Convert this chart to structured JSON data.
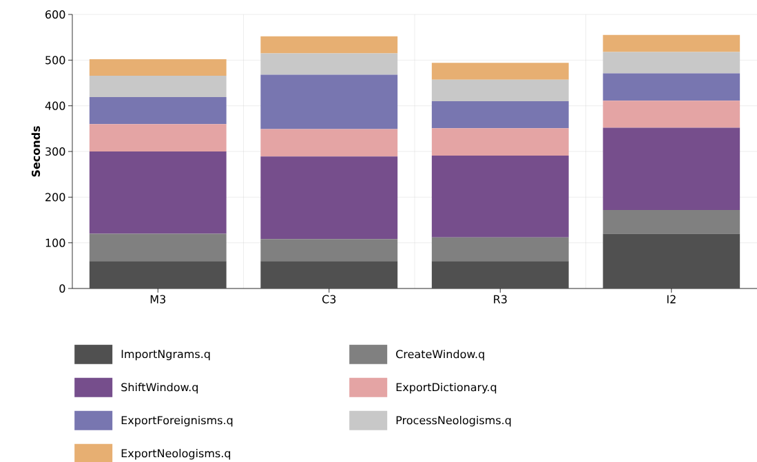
{
  "chart_data": {
    "type": "bar",
    "stacked": true,
    "ylabel": "Seconds",
    "categories": [
      "M3",
      "C3",
      "R3",
      "I2"
    ],
    "series": [
      {
        "name": "ImportNgrams.q",
        "color": "#505050",
        "values": [
          60,
          60,
          60,
          120
        ]
      },
      {
        "name": "CreateWindow.q",
        "color": "#808080",
        "values": [
          60,
          48,
          52,
          52
        ]
      },
      {
        "name": "ShiftWindow.q",
        "color": "#764e8c",
        "values": [
          180,
          181,
          179,
          180
        ]
      },
      {
        "name": "ExportDictionary.q",
        "color": "#e4a4a4",
        "values": [
          60,
          60,
          60,
          59
        ]
      },
      {
        "name": "ExportForeignisms.q",
        "color": "#7876b0",
        "values": [
          59,
          119,
          59,
          60
        ]
      },
      {
        "name": "ProcessNeologisms.q",
        "color": "#c8c8c8",
        "values": [
          47,
          47,
          47,
          47
        ]
      },
      {
        "name": "ExportNeologisms.q",
        "color": "#e7af72",
        "values": [
          36,
          37,
          37,
          37
        ]
      }
    ],
    "ylim": [
      0,
      600
    ],
    "yticks": [
      0,
      100,
      200,
      300,
      400,
      500,
      600
    ],
    "grid": true,
    "legend": "bottom"
  }
}
